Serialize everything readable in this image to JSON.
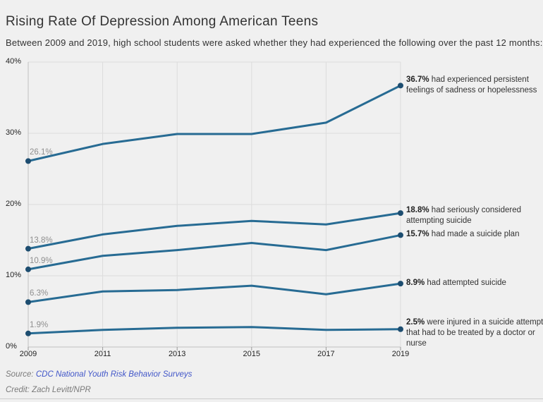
{
  "header": {
    "title": "Rising Rate Of Depression Among American Teens",
    "subtitle": "Between 2009 and 2019, high school students were asked whether they had experienced the following over the past 12 months:"
  },
  "colors": {
    "line": "#276b93",
    "dot": "#1d4d70",
    "grid": "#dcdcdc",
    "axis": "#c0c0c0",
    "tick": "#999999",
    "value_label_gray": "#8f8f8f",
    "text_dark": "#333333",
    "link_blue": "#4156c8",
    "background": "#f0f0f0"
  },
  "chart_data": {
    "type": "line",
    "x": [
      2009,
      2011,
      2013,
      2015,
      2017,
      2019
    ],
    "x_tick_labels": [
      "2009",
      "2011",
      "2013",
      "2015",
      "2017",
      "2019"
    ],
    "ylim": [
      0,
      40
    ],
    "y_ticks": [
      0,
      10,
      20,
      30,
      40
    ],
    "y_tick_labels": [
      "0%",
      "10%",
      "20%",
      "30%",
      "40%"
    ],
    "grid": true,
    "legend_position": "annotations-right",
    "series": [
      {
        "name": "persistent-sadness-or-hopelessness",
        "values": [
          26.1,
          28.5,
          29.9,
          29.9,
          31.5,
          36.7
        ],
        "start_label": "26.1%",
        "annotation_value": "36.7%",
        "annotation_text": "had experienced persistent feelings of sadness or hopelessness"
      },
      {
        "name": "seriously-considered-attempting-suicide",
        "values": [
          13.8,
          15.8,
          17.0,
          17.7,
          17.2,
          18.8
        ],
        "start_label": "13.8%",
        "annotation_value": "18.8%",
        "annotation_text": "had seriously considered attempting suicide"
      },
      {
        "name": "made-a-suicide-plan",
        "values": [
          10.9,
          12.8,
          13.6,
          14.6,
          13.6,
          15.7
        ],
        "start_label": "10.9%",
        "annotation_value": "15.7%",
        "annotation_text": "had made a suicide plan"
      },
      {
        "name": "attempted-suicide",
        "values": [
          6.3,
          7.8,
          8.0,
          8.6,
          7.4,
          8.9
        ],
        "start_label": "6.3%",
        "annotation_value": "8.9%",
        "annotation_text": "had attempted suicide"
      },
      {
        "name": "injured-in-suicide-attempt",
        "values": [
          1.9,
          2.4,
          2.7,
          2.8,
          2.4,
          2.5
        ],
        "start_label": "1.9%",
        "annotation_value": "2.5%",
        "annotation_text": "were injured in a suicide attempt that had to be treated by a doctor or nurse"
      }
    ]
  },
  "footer": {
    "source_prefix": "Source: ",
    "source_link": "CDC National Youth Risk Behavior Surveys",
    "credit": "Credit: Zach Levitt/NPR"
  }
}
